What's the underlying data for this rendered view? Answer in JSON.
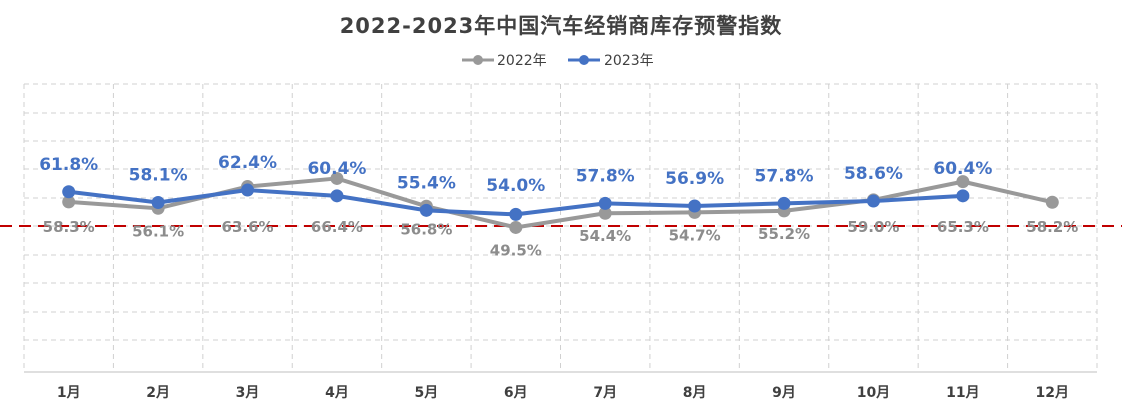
{
  "chart_data": {
    "type": "line",
    "title": "2022-2023年中国汽车经销商库存预警指数",
    "categories": [
      "1月",
      "2月",
      "3月",
      "4月",
      "5月",
      "6月",
      "7月",
      "8月",
      "9月",
      "10月",
      "11月",
      "12月"
    ],
    "series": [
      {
        "name": "2022年",
        "color": "#999999",
        "label_color": "#8c8c8c",
        "values": [
          58.3,
          56.1,
          63.6,
          66.4,
          56.8,
          49.5,
          54.4,
          54.7,
          55.2,
          59.0,
          65.3,
          58.2
        ]
      },
      {
        "name": "2023年",
        "color": "#4472c4",
        "label_color": "#4472c4",
        "values": [
          61.8,
          58.1,
          62.4,
          60.4,
          55.4,
          54.0,
          57.8,
          56.9,
          57.8,
          58.6,
          60.4,
          null
        ]
      }
    ],
    "reference_line": {
      "value": 50,
      "color": "#c00000",
      "style": "dashed"
    },
    "ylim": [
      0,
      100
    ],
    "grid": true,
    "legend_position": "top-center",
    "xlabel": "",
    "ylabel": ""
  }
}
